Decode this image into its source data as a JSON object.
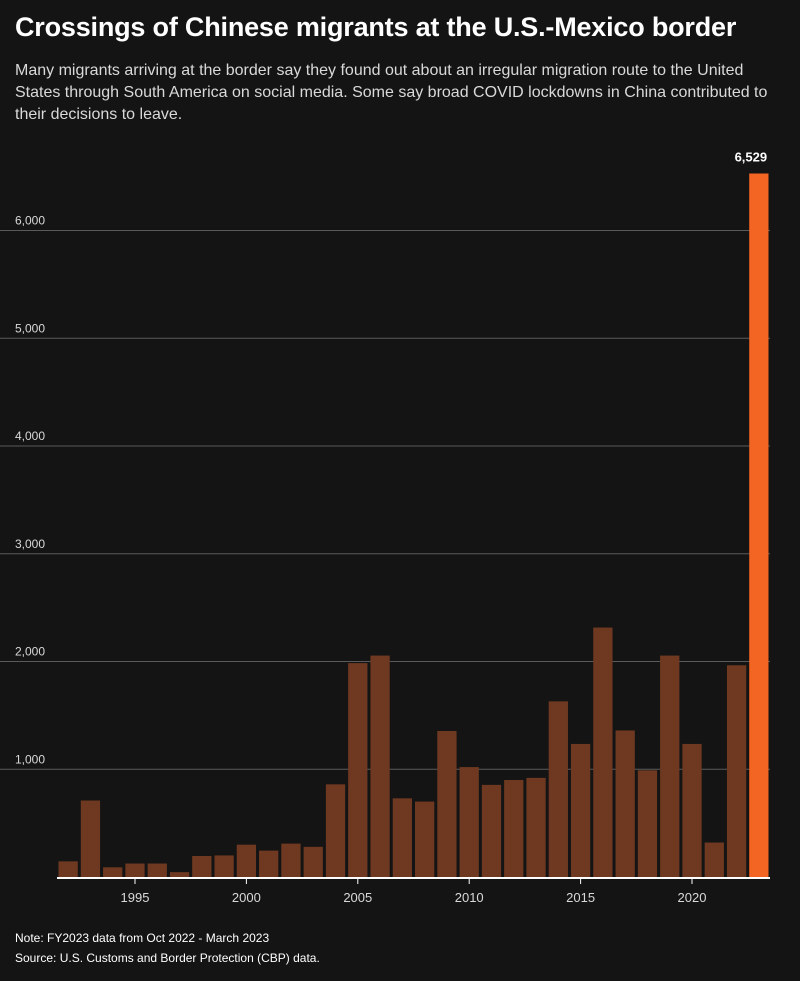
{
  "header": {
    "title": "Crossings of Chinese migrants at the U.S.-Mexico border",
    "subtitle": "Many migrants arriving at the border say they found out about an irregular migration route to the United States through South America on social media. Some say broad COVID lockdowns in China contributed to their decisions to leave."
  },
  "footer": {
    "note": "Note: FY2023 data from Oct 2022 - March 2023",
    "source": "Source: U.S. Customs and Border Protection (CBP) data."
  },
  "colors": {
    "background": "#141414",
    "bar": "#6e3920",
    "highlight": "#f26522",
    "grid": "#5a5a5a",
    "text": "#ffffff",
    "muted": "#d9d9d9"
  },
  "chart_data": {
    "type": "bar",
    "title": "Crossings of Chinese migrants at the U.S.-Mexico border",
    "xlabel": "",
    "ylabel": "",
    "x": [
      1992,
      1993,
      1994,
      1995,
      1996,
      1997,
      1998,
      1999,
      2000,
      2001,
      2002,
      2003,
      2004,
      2005,
      2006,
      2007,
      2008,
      2009,
      2010,
      2011,
      2012,
      2013,
      2014,
      2015,
      2016,
      2017,
      2018,
      2019,
      2020,
      2021,
      2022,
      2023
    ],
    "values": [
      145,
      710,
      90,
      125,
      125,
      45,
      195,
      200,
      300,
      245,
      310,
      280,
      860,
      1985,
      2055,
      730,
      700,
      1355,
      1020,
      855,
      900,
      920,
      1630,
      1235,
      2315,
      1360,
      990,
      2055,
      1235,
      320,
      1965,
      6529
    ],
    "highlight_x": 2023,
    "highlight_label": "6,529",
    "ylim": [
      0,
      6529
    ],
    "yticks": [
      1000,
      2000,
      3000,
      4000,
      5000,
      6000
    ],
    "ytick_labels": [
      "1,000",
      "2,000",
      "3,000",
      "4,000",
      "5,000",
      "6,000"
    ],
    "xticks": [
      1995,
      2000,
      2005,
      2010,
      2015,
      2020
    ],
    "xtick_labels": [
      "1995",
      "2000",
      "2005",
      "2010",
      "2015",
      "2020"
    ],
    "grid": true,
    "legend": "none"
  }
}
